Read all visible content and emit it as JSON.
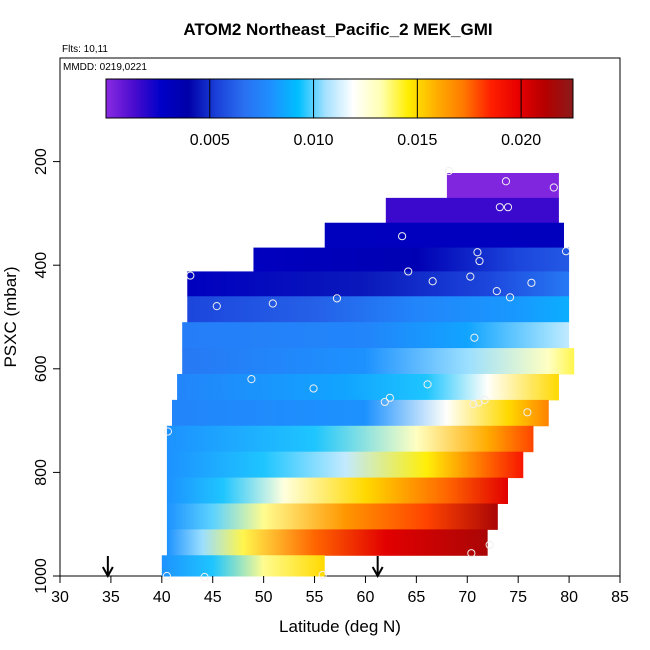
{
  "chart_data": {
    "type": "heatmap",
    "title": "ATOM2 Northeast_Pacific_2 MEK_GMI",
    "annotations": [
      "Flts: 10,11",
      "MMDD: 0219,0221"
    ],
    "xlabel": "Latitude (deg N)",
    "ylabel": "PSXC (mbar)",
    "xlim": [
      30,
      85
    ],
    "ylim": [
      1000,
      0
    ],
    "y_reversed": true,
    "xticks": [
      "30",
      "35",
      "40",
      "45",
      "50",
      "55",
      "60",
      "65",
      "70",
      "75",
      "80",
      "85"
    ],
    "yticks": [
      "200",
      "400",
      "600",
      "800",
      "1000"
    ],
    "colorbar": {
      "min": 0.0,
      "max": 0.0225,
      "ticks": [
        "0.005",
        "0.010",
        "0.015",
        "0.020"
      ],
      "tick_values": [
        0.005,
        0.01,
        0.015,
        0.02
      ],
      "colormap": [
        "#8a2be2",
        "#4b0ccf",
        "#0000c8",
        "#0000a8",
        "#1a3fd8",
        "#2a6ff0",
        "#1e90ff",
        "#00bfff",
        "#a6e1ff",
        "#ffffff",
        "#ffffb3",
        "#ffee00",
        "#ffb000",
        "#ff7a00",
        "#ff2000",
        "#e80000",
        "#b40000",
        "#8b1a1a"
      ],
      "legend_placement": "top"
    },
    "bands": [
      {
        "p_top": 222,
        "p_bot": 270,
        "lat_start": 68,
        "lat_end": 79,
        "stops": [
          [
            68,
            0.0002
          ],
          [
            79,
            0.0002
          ]
        ]
      },
      {
        "p_top": 270,
        "p_bot": 318,
        "lat_start": 62,
        "lat_end": 79,
        "stops": [
          [
            62,
            0.0016
          ],
          [
            79,
            0.0016
          ]
        ]
      },
      {
        "p_top": 318,
        "p_bot": 366,
        "lat_start": 56,
        "lat_end": 79.5,
        "stops": [
          [
            56,
            0.003
          ],
          [
            79.5,
            0.0031
          ]
        ]
      },
      {
        "p_top": 366,
        "p_bot": 412,
        "lat_start": 49,
        "lat_end": 80,
        "stops": [
          [
            49,
            0.003
          ],
          [
            65,
            0.0035
          ],
          [
            75,
            0.0055
          ],
          [
            80,
            0.006
          ]
        ]
      },
      {
        "p_top": 412,
        "p_bot": 460,
        "lat_start": 42.5,
        "lat_end": 80,
        "stops": [
          [
            42.5,
            0.003
          ],
          [
            60,
            0.0045
          ],
          [
            72,
            0.0055
          ],
          [
            80,
            0.007
          ]
        ]
      },
      {
        "p_top": 460,
        "p_bot": 510,
        "lat_start": 42.5,
        "lat_end": 80,
        "stops": [
          [
            42.5,
            0.0055
          ],
          [
            55,
            0.0062
          ],
          [
            65,
            0.0075
          ],
          [
            75,
            0.0082
          ],
          [
            80,
            0.0088
          ]
        ]
      },
      {
        "p_top": 510,
        "p_bot": 560,
        "lat_start": 42,
        "lat_end": 80,
        "stops": [
          [
            42,
            0.0072
          ],
          [
            60,
            0.0075
          ],
          [
            70,
            0.0085
          ],
          [
            78,
            0.0105
          ],
          [
            80,
            0.011
          ]
        ]
      },
      {
        "p_top": 560,
        "p_bot": 610,
        "lat_start": 42,
        "lat_end": 80.5,
        "stops": [
          [
            42,
            0.007
          ],
          [
            60,
            0.008
          ],
          [
            70,
            0.0105
          ],
          [
            78,
            0.013
          ],
          [
            80.5,
            0.014
          ]
        ]
      },
      {
        "p_top": 610,
        "p_bot": 660,
        "lat_start": 41.5,
        "lat_end": 79,
        "stops": [
          [
            41.5,
            0.0075
          ],
          [
            58,
            0.0085
          ],
          [
            66,
            0.0095
          ],
          [
            72,
            0.012
          ],
          [
            79,
            0.015
          ]
        ]
      },
      {
        "p_top": 660,
        "p_bot": 710,
        "lat_start": 41,
        "lat_end": 78,
        "stops": [
          [
            41,
            0.0075
          ],
          [
            60,
            0.008
          ],
          [
            68,
            0.012
          ],
          [
            74,
            0.015
          ],
          [
            78,
            0.017
          ]
        ]
      },
      {
        "p_top": 710,
        "p_bot": 760,
        "lat_start": 40.5,
        "lat_end": 76.5,
        "stops": [
          [
            40.5,
            0.008
          ],
          [
            55,
            0.0095
          ],
          [
            65,
            0.013
          ],
          [
            72,
            0.016
          ],
          [
            76.5,
            0.018
          ]
        ]
      },
      {
        "p_top": 760,
        "p_bot": 810,
        "lat_start": 40.5,
        "lat_end": 75.5,
        "stops": [
          [
            40.5,
            0.008
          ],
          [
            50,
            0.0095
          ],
          [
            58,
            0.011
          ],
          [
            66,
            0.0145
          ],
          [
            72,
            0.0175
          ],
          [
            75.5,
            0.019
          ]
        ]
      },
      {
        "p_top": 810,
        "p_bot": 860,
        "lat_start": 40.5,
        "lat_end": 74,
        "stops": [
          [
            40.5,
            0.008
          ],
          [
            46,
            0.0095
          ],
          [
            52,
            0.0125
          ],
          [
            60,
            0.015
          ],
          [
            68,
            0.0175
          ],
          [
            74,
            0.02
          ]
        ]
      },
      {
        "p_top": 860,
        "p_bot": 910,
        "lat_start": 40.5,
        "lat_end": 73,
        "stops": [
          [
            40.5,
            0.008
          ],
          [
            45,
            0.01
          ],
          [
            50,
            0.0135
          ],
          [
            58,
            0.0165
          ],
          [
            66,
            0.018
          ],
          [
            73,
            0.0215
          ]
        ]
      },
      {
        "p_top": 910,
        "p_bot": 960,
        "lat_start": 40.5,
        "lat_end": 72,
        "stops": [
          [
            40.5,
            0.008
          ],
          [
            44,
            0.0105
          ],
          [
            48,
            0.014
          ],
          [
            55,
            0.0175
          ],
          [
            62,
            0.02
          ],
          [
            72,
            0.0215
          ]
        ]
      },
      {
        "p_top": 960,
        "p_bot": 1005,
        "lat_start": 40,
        "lat_end": 56,
        "stops": [
          [
            40,
            0.008
          ],
          [
            45,
            0.0095
          ],
          [
            50,
            0.0135
          ],
          [
            56,
            0.015
          ]
        ]
      }
    ],
    "points": [
      {
        "x": 68.2,
        "y": 218
      },
      {
        "x": 73.8,
        "y": 238
      },
      {
        "x": 78.5,
        "y": 250
      },
      {
        "x": 73.2,
        "y": 288
      },
      {
        "x": 74.0,
        "y": 288
      },
      {
        "x": 63.6,
        "y": 344
      },
      {
        "x": 71.0,
        "y": 375
      },
      {
        "x": 71.2,
        "y": 392
      },
      {
        "x": 79.7,
        "y": 373
      },
      {
        "x": 64.2,
        "y": 412
      },
      {
        "x": 70.3,
        "y": 422
      },
      {
        "x": 66.6,
        "y": 431
      },
      {
        "x": 76.3,
        "y": 434
      },
      {
        "x": 72.9,
        "y": 450
      },
      {
        "x": 74.2,
        "y": 462
      },
      {
        "x": 42.8,
        "y": 420
      },
      {
        "x": 45.4,
        "y": 479
      },
      {
        "x": 50.9,
        "y": 474
      },
      {
        "x": 57.2,
        "y": 464
      },
      {
        "x": 70.7,
        "y": 540
      },
      {
        "x": 48.8,
        "y": 620
      },
      {
        "x": 54.9,
        "y": 638
      },
      {
        "x": 66.1,
        "y": 630
      },
      {
        "x": 62.4,
        "y": 656
      },
      {
        "x": 61.9,
        "y": 664
      },
      {
        "x": 70.6,
        "y": 668
      },
      {
        "x": 71.1,
        "y": 665
      },
      {
        "x": 71.7,
        "y": 660
      },
      {
        "x": 75.9,
        "y": 684
      },
      {
        "x": 40.6,
        "y": 721
      },
      {
        "x": 70.4,
        "y": 956
      },
      {
        "x": 72.2,
        "y": 940
      },
      {
        "x": 40.5,
        "y": 1000
      },
      {
        "x": 44.2,
        "y": 1002
      },
      {
        "x": 55.8,
        "y": 998
      }
    ],
    "markers": [
      {
        "x": 34.7,
        "type": "down-arrow"
      },
      {
        "x": 61.2,
        "type": "down-arrow"
      }
    ]
  }
}
